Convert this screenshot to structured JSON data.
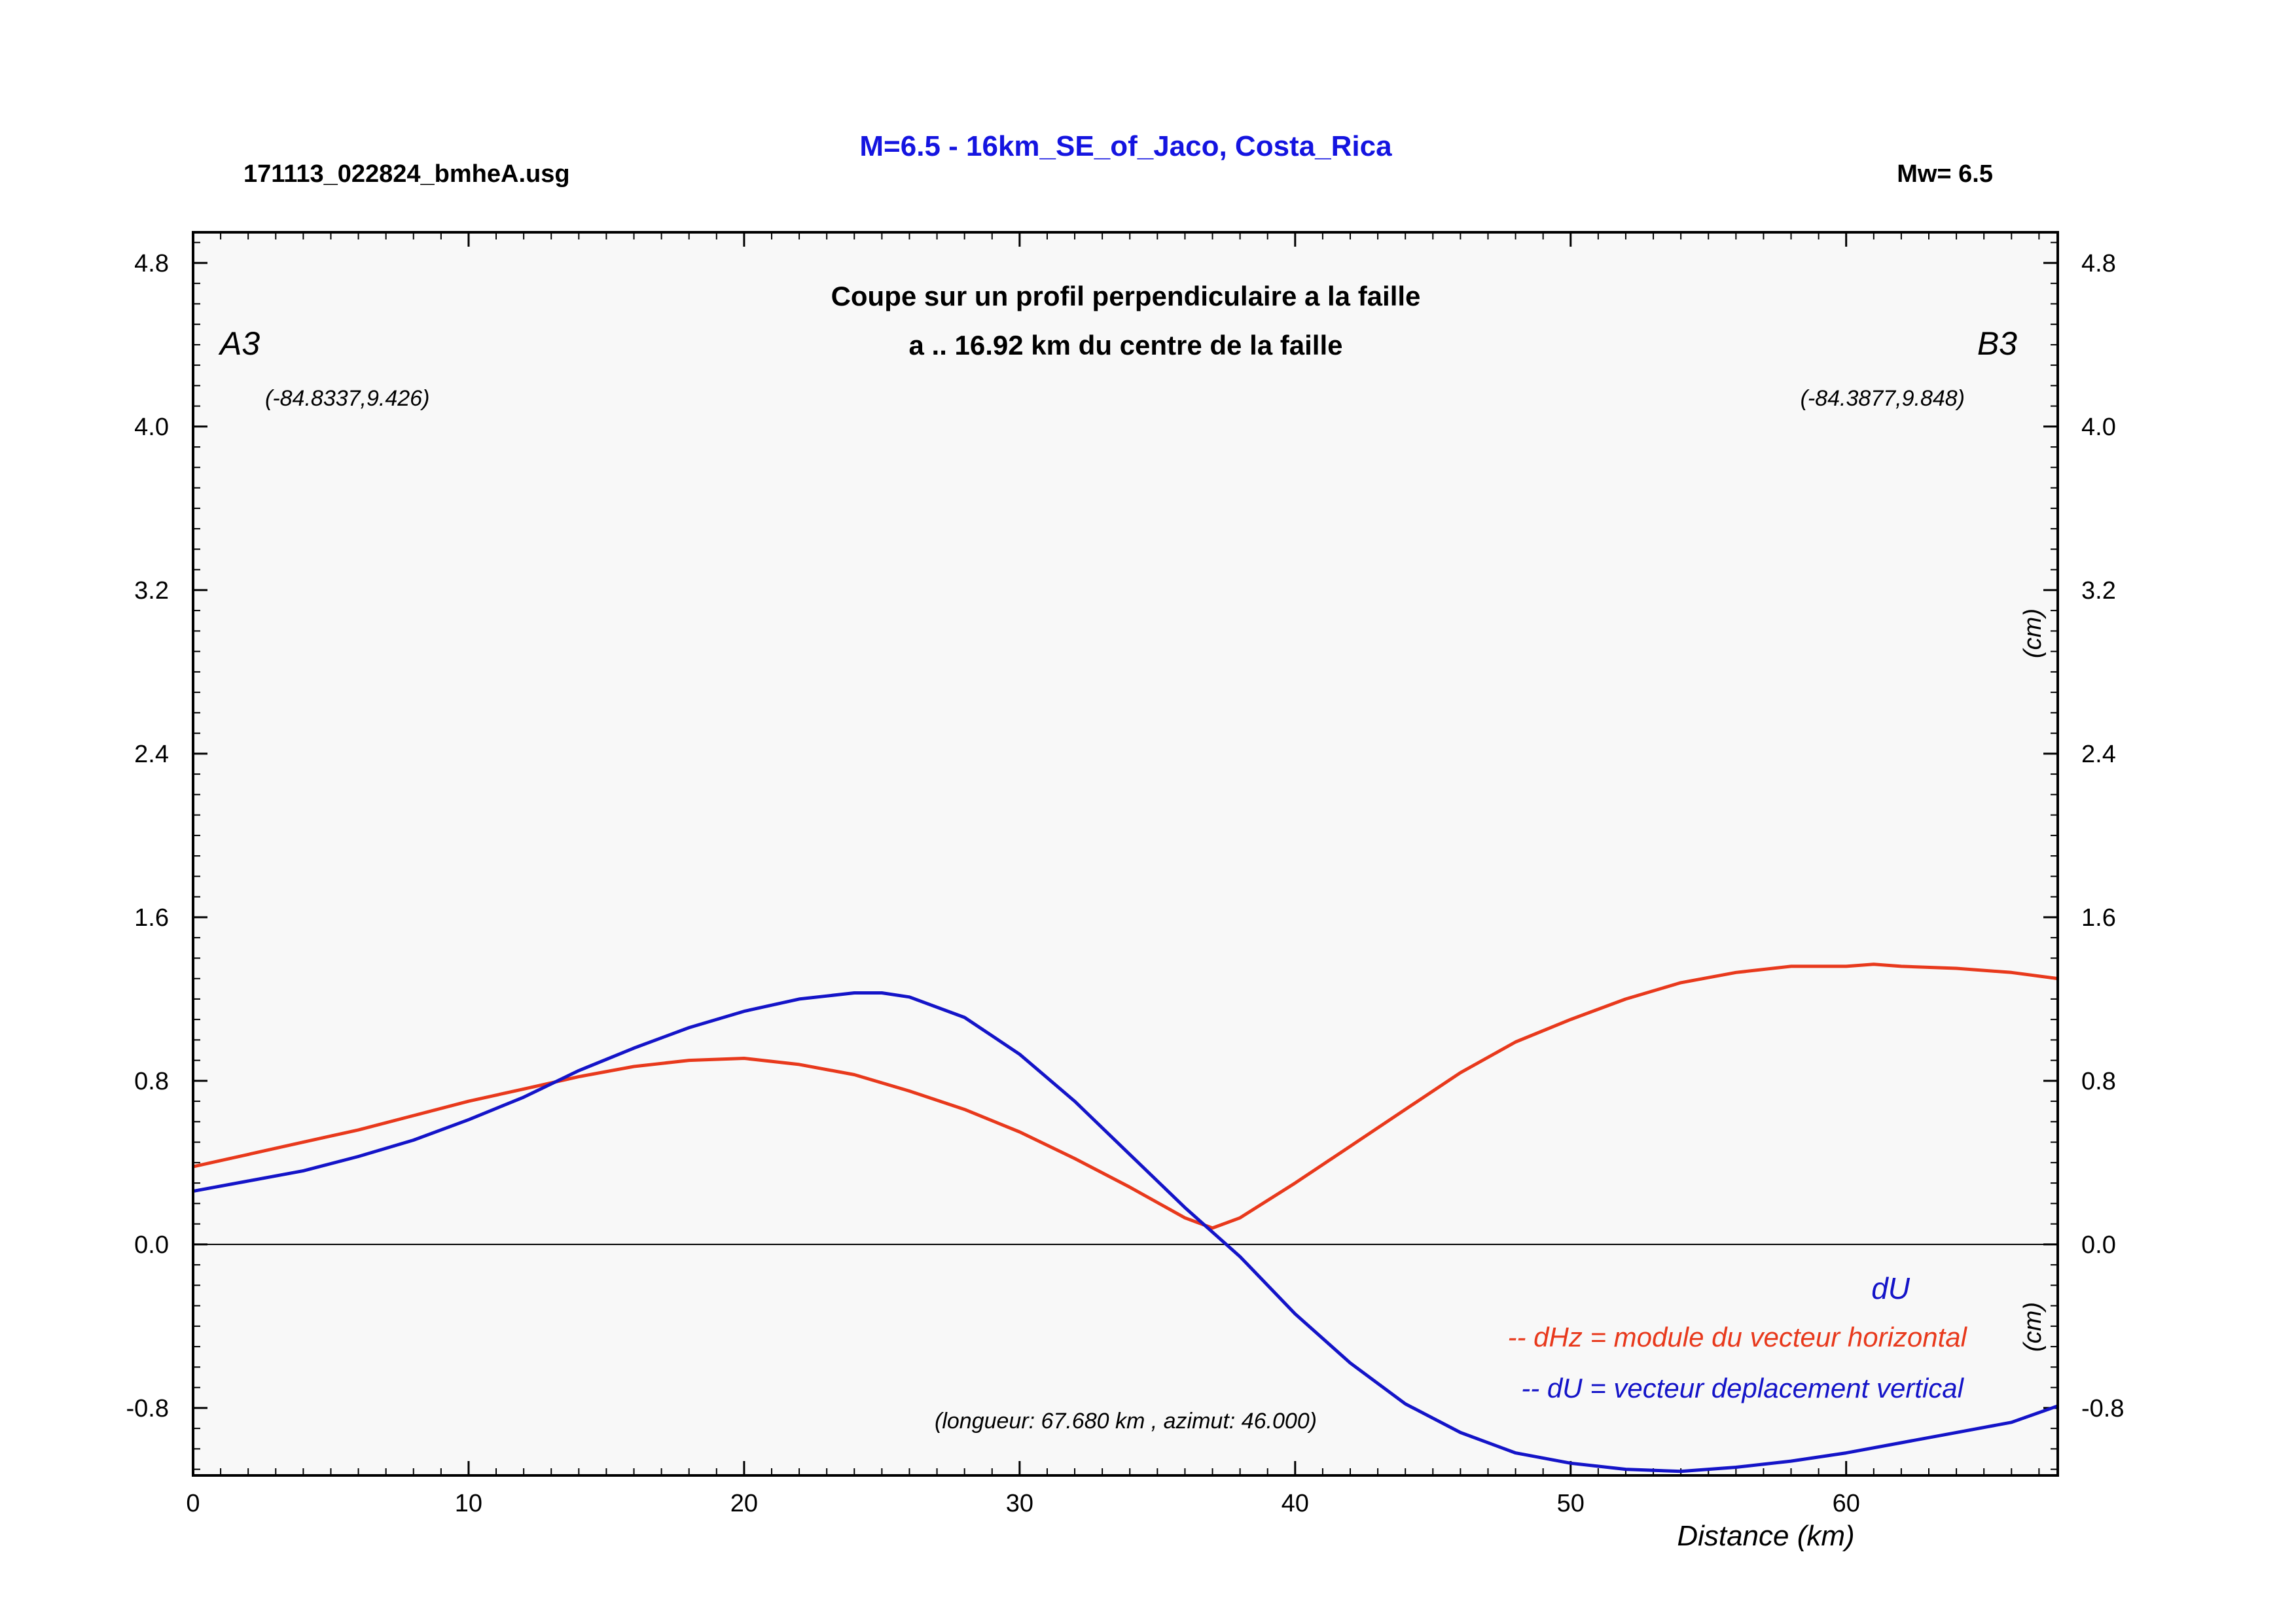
{
  "header": {
    "filename": "171113_022824_bmheA.usg",
    "title": "M=6.5 - 16km_SE_of_Jaco, Costa_Rica",
    "magnitude": "Mw= 6.5"
  },
  "plot": {
    "subtitle_line1": "Coupe sur un profil perpendiculaire a la faille",
    "subtitle_line2": "a .. 16.92 km du centre de la faille",
    "start_label": "A3",
    "end_label": "B3",
    "start_coords": "(-84.8337,9.426)",
    "end_coords": "(-84.3877,9.848)",
    "note": "(longueur: 67.680 km , azimut: 46.000)",
    "unit_upper": "(cm)",
    "unit_lower": "(cm)",
    "du_label": "dU",
    "legend": [
      {
        "text": "-- dHz = module du vecteur horizontal",
        "color": "#e8391c"
      },
      {
        "text": "-- dU =  vecteur deplacement vertical",
        "color": "#1414c8"
      }
    ]
  },
  "colors": {
    "title": "#1414e0",
    "dHz": "#e8391c",
    "dU": "#1414c8",
    "background": "#f8f8f8"
  },
  "chart_data": {
    "type": "line",
    "title": "M=6.5 - 16km_SE_of_Jaco, Costa_Rica",
    "xlabel": "Distance (km)",
    "ylabel": "(cm)",
    "xlim": [
      0,
      67.68
    ],
    "ylim": [
      -1.13,
      4.95
    ],
    "x_ticks": [
      "0",
      "10",
      "20",
      "30",
      "40",
      "50",
      "60"
    ],
    "y_ticks": [
      "4.8",
      "4.0",
      "3.2",
      "2.4",
      "1.6",
      "0.8",
      "0.0",
      "-0.8"
    ],
    "series": [
      {
        "name": "dHz",
        "color": "#e8391c",
        "x": [
          0,
          2,
          4,
          6,
          8,
          10,
          12,
          14,
          16,
          18,
          20,
          22,
          24,
          26,
          28,
          30,
          32,
          34,
          36,
          37,
          38,
          40,
          42,
          44,
          46,
          48,
          50,
          52,
          54,
          56,
          58,
          60,
          61,
          62,
          64,
          66,
          67.68
        ],
        "y": [
          0.38,
          0.44,
          0.5,
          0.56,
          0.63,
          0.7,
          0.76,
          0.82,
          0.87,
          0.9,
          0.91,
          0.88,
          0.83,
          0.75,
          0.66,
          0.55,
          0.42,
          0.28,
          0.13,
          0.08,
          0.13,
          0.3,
          0.48,
          0.66,
          0.84,
          0.99,
          1.1,
          1.2,
          1.28,
          1.33,
          1.36,
          1.36,
          1.37,
          1.36,
          1.35,
          1.33,
          1.3
        ]
      },
      {
        "name": "dU",
        "color": "#1414c8",
        "x": [
          0,
          2,
          4,
          6,
          8,
          10,
          12,
          14,
          16,
          18,
          20,
          22,
          24,
          25,
          26,
          28,
          30,
          32,
          34,
          36,
          38,
          40,
          42,
          44,
          46,
          48,
          50,
          52,
          54,
          56,
          58,
          60,
          62,
          64,
          66,
          67.68
        ],
        "y": [
          0.26,
          0.31,
          0.36,
          0.43,
          0.51,
          0.61,
          0.72,
          0.85,
          0.96,
          1.06,
          1.14,
          1.2,
          1.23,
          1.23,
          1.21,
          1.11,
          0.93,
          0.7,
          0.44,
          0.18,
          -0.06,
          -0.34,
          -0.58,
          -0.78,
          -0.92,
          -1.02,
          -1.07,
          -1.1,
          -1.11,
          -1.09,
          -1.06,
          -1.02,
          -0.97,
          -0.92,
          -0.87,
          -0.79
        ]
      }
    ]
  }
}
